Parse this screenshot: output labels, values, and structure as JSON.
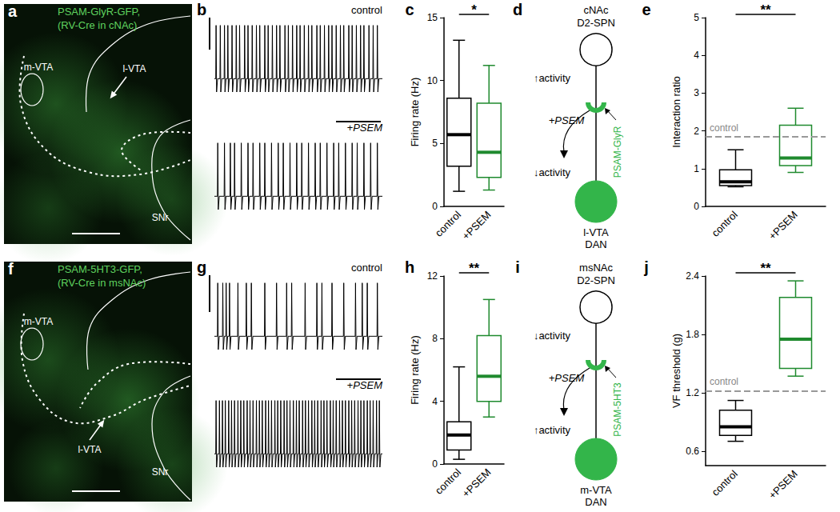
{
  "chart_data": [
    {
      "type": "trace",
      "title": "b",
      "xlim": [
        0,
        100
      ],
      "ylim": [
        -0.4,
        1.1
      ],
      "tick_labels": false,
      "traces": [
        {
          "label": "control",
          "spike_times": [
            1,
            3.5,
            6,
            8,
            10.5,
            13,
            15,
            18,
            20,
            22.5,
            25,
            27,
            30,
            32,
            34.5,
            37,
            39,
            42,
            44,
            46.5,
            49,
            51,
            53.5,
            56,
            58,
            61,
            63,
            65.5,
            68,
            70,
            72.5,
            75,
            77,
            80,
            82,
            84.5,
            87,
            89,
            92,
            94.5,
            97
          ]
        },
        {
          "label": "+PSEM",
          "spike_times": [
            2,
            6,
            9.5,
            12,
            16,
            20,
            23,
            27,
            30,
            34,
            38,
            41,
            45,
            49,
            52,
            56,
            60,
            63,
            67,
            71,
            74,
            78,
            82,
            85,
            89,
            93,
            97
          ]
        }
      ]
    },
    {
      "type": "boxplot",
      "title": "c",
      "categories": [
        "control",
        "+PSEM"
      ],
      "values": [
        [
          1.2,
          3.2,
          5.7,
          8.6,
          13.2
        ],
        [
          1.3,
          2.3,
          4.3,
          8.2,
          11.2
        ]
      ],
      "colors": [
        "#000000",
        "#1f8a2e"
      ],
      "y_label": "Firing rate (Hz)",
      "ylim": [
        0,
        15
      ],
      "yticks": [
        0,
        5,
        10,
        15
      ],
      "significance": "*"
    },
    {
      "type": "boxplot",
      "title": "e",
      "categories": [
        "control",
        "+PSEM"
      ],
      "values": [
        [
          0.52,
          0.55,
          0.65,
          0.97,
          1.5
        ],
        [
          0.9,
          1.08,
          1.28,
          2.15,
          2.6
        ]
      ],
      "colors": [
        "#000000",
        "#1f8a2e"
      ],
      "y_label": "Interaction ratio",
      "ylim": [
        0,
        5
      ],
      "yticks": [
        0,
        1,
        2,
        3,
        4,
        5
      ],
      "significance": "**",
      "reference": {
        "value": 1.85,
        "label": "control"
      }
    },
    {
      "type": "trace",
      "title": "g",
      "xlim": [
        0,
        100
      ],
      "ylim": [
        -0.4,
        1.1
      ],
      "tick_labels": false,
      "traces": [
        {
          "label": "control",
          "spike_times": [
            2,
            5,
            7,
            9,
            14,
            19,
            22,
            30,
            37,
            43,
            46,
            54,
            61,
            64,
            70,
            77,
            84,
            88,
            91,
            97
          ]
        },
        {
          "label": "+PSEM",
          "spike_times": [
            1,
            3,
            4.8,
            6.5,
            8.5,
            10.2,
            12,
            14,
            15.7,
            17.5,
            19.5,
            21.2,
            23,
            25,
            26.8,
            28.5,
            30.5,
            32.2,
            34,
            36,
            37.7,
            39.5,
            41.5,
            43.2,
            45,
            47,
            48.8,
            50.5,
            52.5,
            54.2,
            56,
            58,
            59.7,
            61.5,
            63.5,
            65.2,
            67,
            69,
            70.7,
            72.5,
            74.5,
            76.2,
            78,
            80,
            81.7,
            83.5,
            85.5,
            87.2,
            89,
            91,
            92.7,
            94.5,
            96.5,
            98.2
          ]
        }
      ]
    },
    {
      "type": "boxplot",
      "title": "h",
      "categories": [
        "control",
        "+PSEM"
      ],
      "values": [
        [
          0.3,
          0.9,
          1.85,
          2.7,
          6.2
        ],
        [
          3.0,
          4.0,
          5.6,
          8.2,
          10.5
        ]
      ],
      "colors": [
        "#000000",
        "#1f8a2e"
      ],
      "y_label": "Firing rate (Hz)",
      "ylim": [
        0,
        12
      ],
      "yticks": [
        0,
        4,
        8,
        12
      ],
      "significance": "**"
    },
    {
      "type": "boxplot",
      "title": "j",
      "categories": [
        "control",
        "+PSEM"
      ],
      "values": [
        [
          0.7,
          0.76,
          0.85,
          1.02,
          1.12
        ],
        [
          1.37,
          1.45,
          1.75,
          2.18,
          2.35
        ]
      ],
      "colors": [
        "#000000",
        "#1f8a2e"
      ],
      "y_label": "VF threshold (g)",
      "ylim": [
        0.45,
        2.4
      ],
      "yticks": [
        0.6,
        1.2,
        1.8,
        2.4
      ],
      "significance": "**",
      "reference": {
        "value": 1.22,
        "label": "control"
      }
    }
  ],
  "images": [
    {
      "title": "a",
      "label": [
        "PSAM-GlyR-GFP,",
        "(RV-Cre in cNAc)"
      ],
      "regions": [
        "m-VTA",
        "l-VTA",
        "SNr"
      ]
    },
    {
      "title": "f",
      "label": [
        "PSAM-5HT3-GFP,",
        "(RV-Cre in msNAc)"
      ],
      "regions": [
        "m-VTA",
        "l-VTA",
        "SNr"
      ]
    }
  ],
  "diagrams": [
    {
      "title": "d",
      "top": [
        "cNAc",
        "D2-SPN"
      ],
      "top_change": "↑activity",
      "drug": "+PSEM",
      "receptor": "PSAM-GlyR",
      "bottom_change": "↓activity",
      "bottom": [
        "l-VTA",
        "DAN"
      ]
    },
    {
      "title": "i",
      "top": [
        "msNAc",
        "D2-SPN"
      ],
      "top_change": "↓activity",
      "drug": "+PSEM",
      "receptor": "PSAM-5HT3",
      "bottom_change": "↑activity",
      "bottom": [
        "m-VTA",
        "DAN"
      ]
    }
  ]
}
